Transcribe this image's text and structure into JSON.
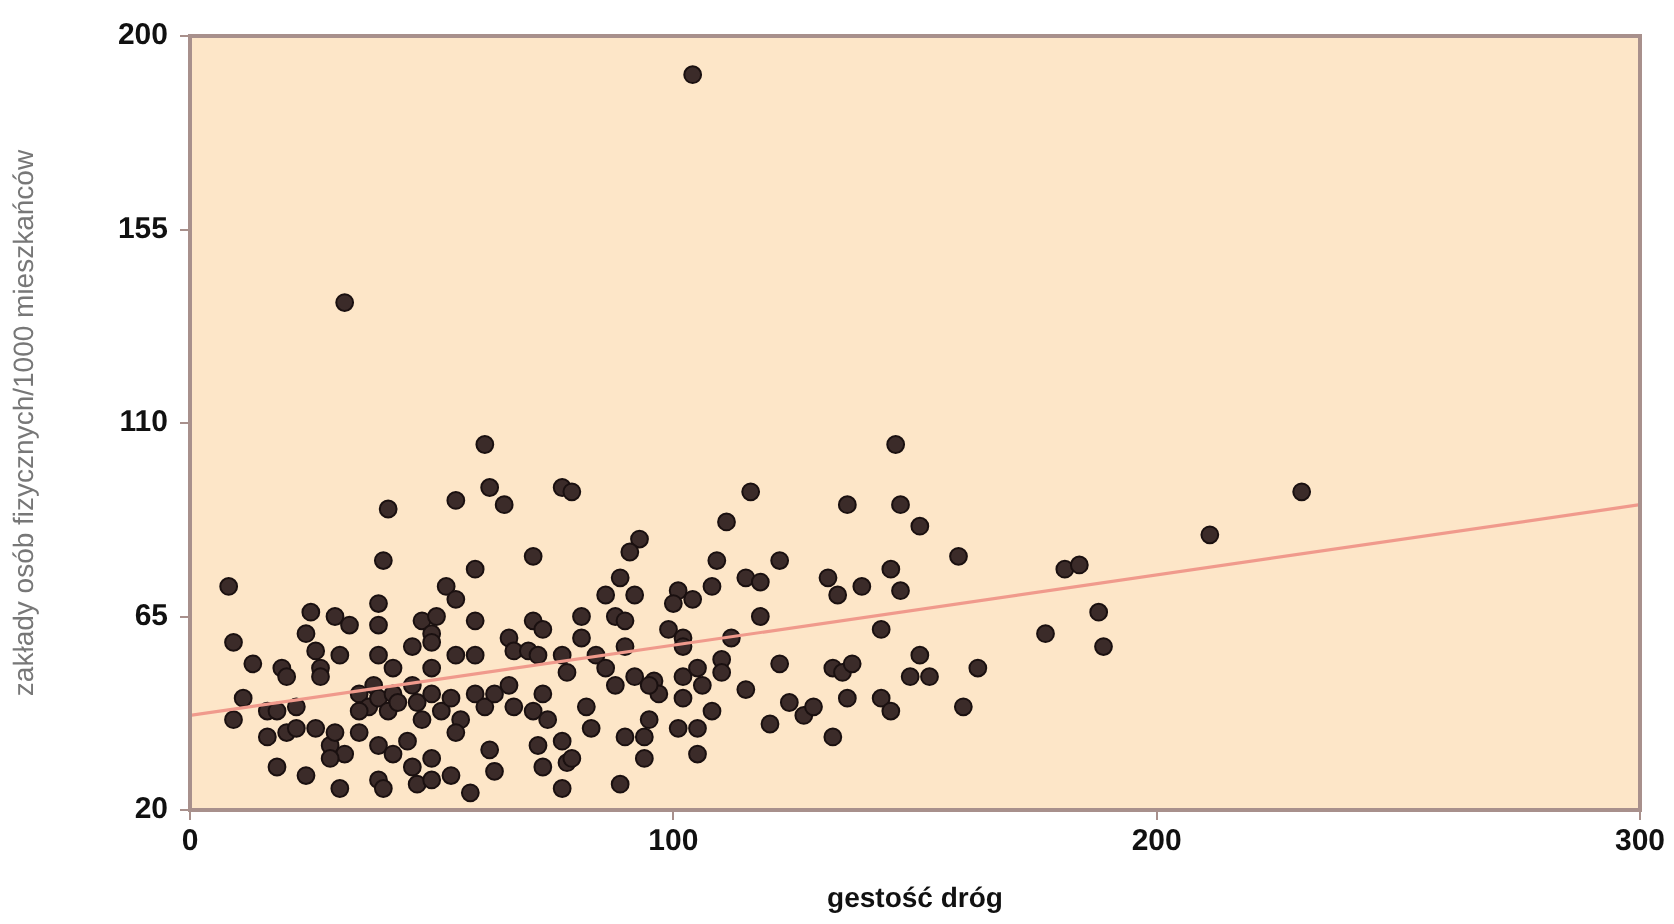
{
  "chart_data": {
    "type": "scatter",
    "xlabel": "gestość dróg",
    "ylabel": "zakłady osób fizycznych/1000 mieszkańców",
    "xlim": [
      0,
      300
    ],
    "xticks": [
      0,
      100,
      200,
      300
    ],
    "ylim": [
      20,
      200
    ],
    "yticks": [
      20,
      65,
      110,
      155,
      200
    ],
    "grid": false,
    "legend": false,
    "series": [
      {
        "type": "scatter",
        "marker": "circle",
        "color": "#3b2b29",
        "x": [
          61,
          62,
          65,
          41,
          55,
          77,
          79,
          40,
          59,
          71,
          8,
          53,
          55,
          39,
          25,
          30,
          33,
          24,
          39,
          48,
          51,
          59,
          50,
          71,
          73,
          9,
          26,
          27,
          27,
          13,
          19,
          20,
          31,
          39,
          42,
          46,
          50,
          50,
          55,
          59,
          66,
          67,
          70,
          72,
          77,
          78,
          11,
          9,
          16,
          18,
          22,
          16,
          20,
          22,
          26,
          29,
          30,
          32,
          35,
          37,
          35,
          38,
          39,
          42,
          41,
          43,
          46,
          47,
          48,
          50,
          52,
          54,
          56,
          55,
          59,
          61,
          66,
          63,
          67,
          71,
          73,
          74,
          35,
          39,
          42,
          45,
          39,
          40,
          46,
          50,
          47,
          50,
          54,
          58,
          62,
          63,
          31,
          24,
          18,
          29,
          72,
          73,
          77,
          78,
          77,
          32,
          104,
          146,
          116,
          136,
          147,
          151,
          111,
          93,
          91,
          109,
          122,
          159,
          132,
          134,
          139,
          145,
          147,
          115,
          118,
          89,
          86,
          92,
          101,
          100,
          104,
          108,
          81,
          88,
          90,
          118,
          99,
          102,
          112,
          143,
          81,
          90,
          84,
          102,
          110,
          122,
          133,
          135,
          137,
          151,
          149,
          153,
          163,
          177,
          86,
          88,
          92,
          96,
          97,
          95,
          102,
          105,
          106,
          110,
          102,
          115,
          108,
          136,
          143,
          145,
          160,
          124,
          127,
          129,
          120,
          133,
          82,
          83,
          95,
          90,
          94,
          94,
          101,
          105,
          105,
          89,
          79,
          230,
          211,
          181,
          184,
          188,
          189
        ],
        "values": [
          105,
          95,
          91,
          90,
          92,
          95,
          94,
          78,
          76,
          79,
          72,
          72,
          69,
          68,
          66,
          65,
          63,
          61,
          63,
          64,
          65,
          64,
          61,
          64,
          62,
          59,
          57,
          53,
          51,
          54,
          53,
          51,
          56,
          56,
          53,
          58,
          59,
          53,
          56,
          56,
          60,
          57,
          57,
          56,
          56,
          52,
          46,
          41,
          43,
          43,
          44,
          37,
          38,
          39,
          39,
          35,
          38,
          33,
          47,
          44,
          43,
          49,
          46,
          47,
          43,
          45,
          49,
          45,
          41,
          47,
          43,
          46,
          41,
          38,
          47,
          44,
          49,
          47,
          44,
          43,
          47,
          41,
          38,
          35,
          33,
          36,
          27,
          25,
          30,
          32,
          26,
          27,
          28,
          24,
          34,
          29,
          25,
          28,
          30,
          32,
          35,
          30,
          36,
          31,
          25,
          138,
          191,
          105,
          94,
          91,
          91,
          86,
          87,
          83,
          80,
          78,
          78,
          79,
          74,
          70,
          72,
          76,
          71,
          74,
          73,
          74,
          70,
          70,
          71,
          68,
          69,
          72,
          65,
          65,
          64,
          65,
          62,
          60,
          60,
          62,
          60,
          58,
          56,
          58,
          55,
          54,
          53,
          52,
          54,
          56,
          51,
          51,
          53,
          61,
          53,
          49,
          51,
          50,
          47,
          49,
          51,
          53,
          49,
          52,
          46,
          48,
          43,
          46,
          46,
          43,
          44,
          45,
          42,
          44,
          40,
          37,
          44,
          39,
          41,
          37,
          37,
          32,
          39,
          39,
          33,
          26,
          32,
          94,
          84,
          76,
          77,
          66,
          58
        ]
      },
      {
        "type": "line",
        "marker": "none",
        "color": "#f09a8c",
        "x": [
          0,
          300
        ],
        "values": [
          42,
          91
        ]
      }
    ]
  }
}
